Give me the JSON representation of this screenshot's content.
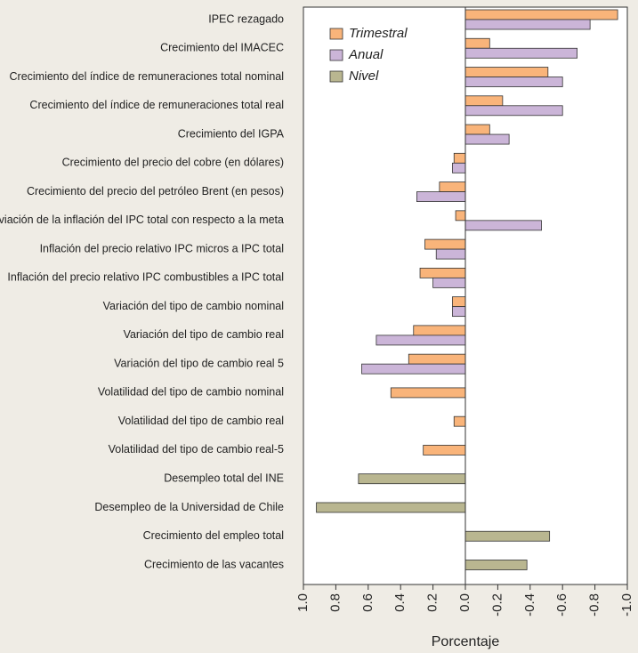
{
  "chart_data": {
    "type": "bar",
    "orientation": "horizontal",
    "xlabel": "Porcentaje",
    "categories": [
      "IPEC rezagado",
      "Crecimiento del IMACEC",
      "Crecimiento del índice de remuneraciones total nominal",
      "Crecimiento del índice de remuneraciones total real",
      "Crecimiento del IGPA",
      "Crecimiento del precio del cobre (en dólares)",
      "Crecimiento del precio del petróleo Brent (en pesos)",
      "Desviación de la inflación del IPC total con respecto a la meta",
      "Inflación del precio relativo IPC micros a IPC total",
      "Inflación del precio relativo IPC combustibles a IPC total",
      "Variación del tipo de cambio nominal",
      "Variación del tipo de cambio real",
      "Variación del tipo de cambio real 5",
      "Volatilidad del tipo de cambio nominal",
      "Volatilidad del tipo de cambio real",
      "Volatilidad del tipo de cambio real-5",
      "Desempleo total del INE",
      "Desempleo de la Universidad de Chile",
      "Crecimiento del empleo total",
      "Crecimiento de las vacantes"
    ],
    "series": [
      {
        "name": "Trimestral",
        "color": "#f9b47a",
        "values": [
          -0.94,
          -0.15,
          -0.51,
          -0.23,
          -0.15,
          0.07,
          0.16,
          0.06,
          0.25,
          0.28,
          0.08,
          0.32,
          0.35,
          0.46,
          0.07,
          0.26,
          null,
          null,
          null,
          null
        ]
      },
      {
        "name": "Anual",
        "color": "#cbb5d8",
        "values": [
          -0.77,
          -0.69,
          -0.6,
          -0.6,
          -0.27,
          0.08,
          0.3,
          -0.47,
          0.18,
          0.2,
          0.08,
          0.55,
          0.64,
          null,
          null,
          null,
          null,
          null,
          null,
          null
        ]
      },
      {
        "name": "Nivel",
        "color": "#b9b690",
        "values": [
          null,
          null,
          null,
          null,
          null,
          null,
          null,
          null,
          null,
          null,
          null,
          null,
          null,
          null,
          null,
          null,
          0.66,
          0.92,
          -0.52,
          -0.38
        ]
      }
    ],
    "xlim": [
      1,
      -1
    ],
    "xticks": [
      {
        "value": 1,
        "label": "1.0"
      },
      0.8,
      0.6,
      0.4,
      0.2,
      {
        "value": 0,
        "label": "0.0"
      },
      -0.2,
      -0.4,
      -0.6,
      -0.8,
      {
        "value": -1,
        "label": "-1.0"
      }
    ],
    "legend": "upper left"
  }
}
